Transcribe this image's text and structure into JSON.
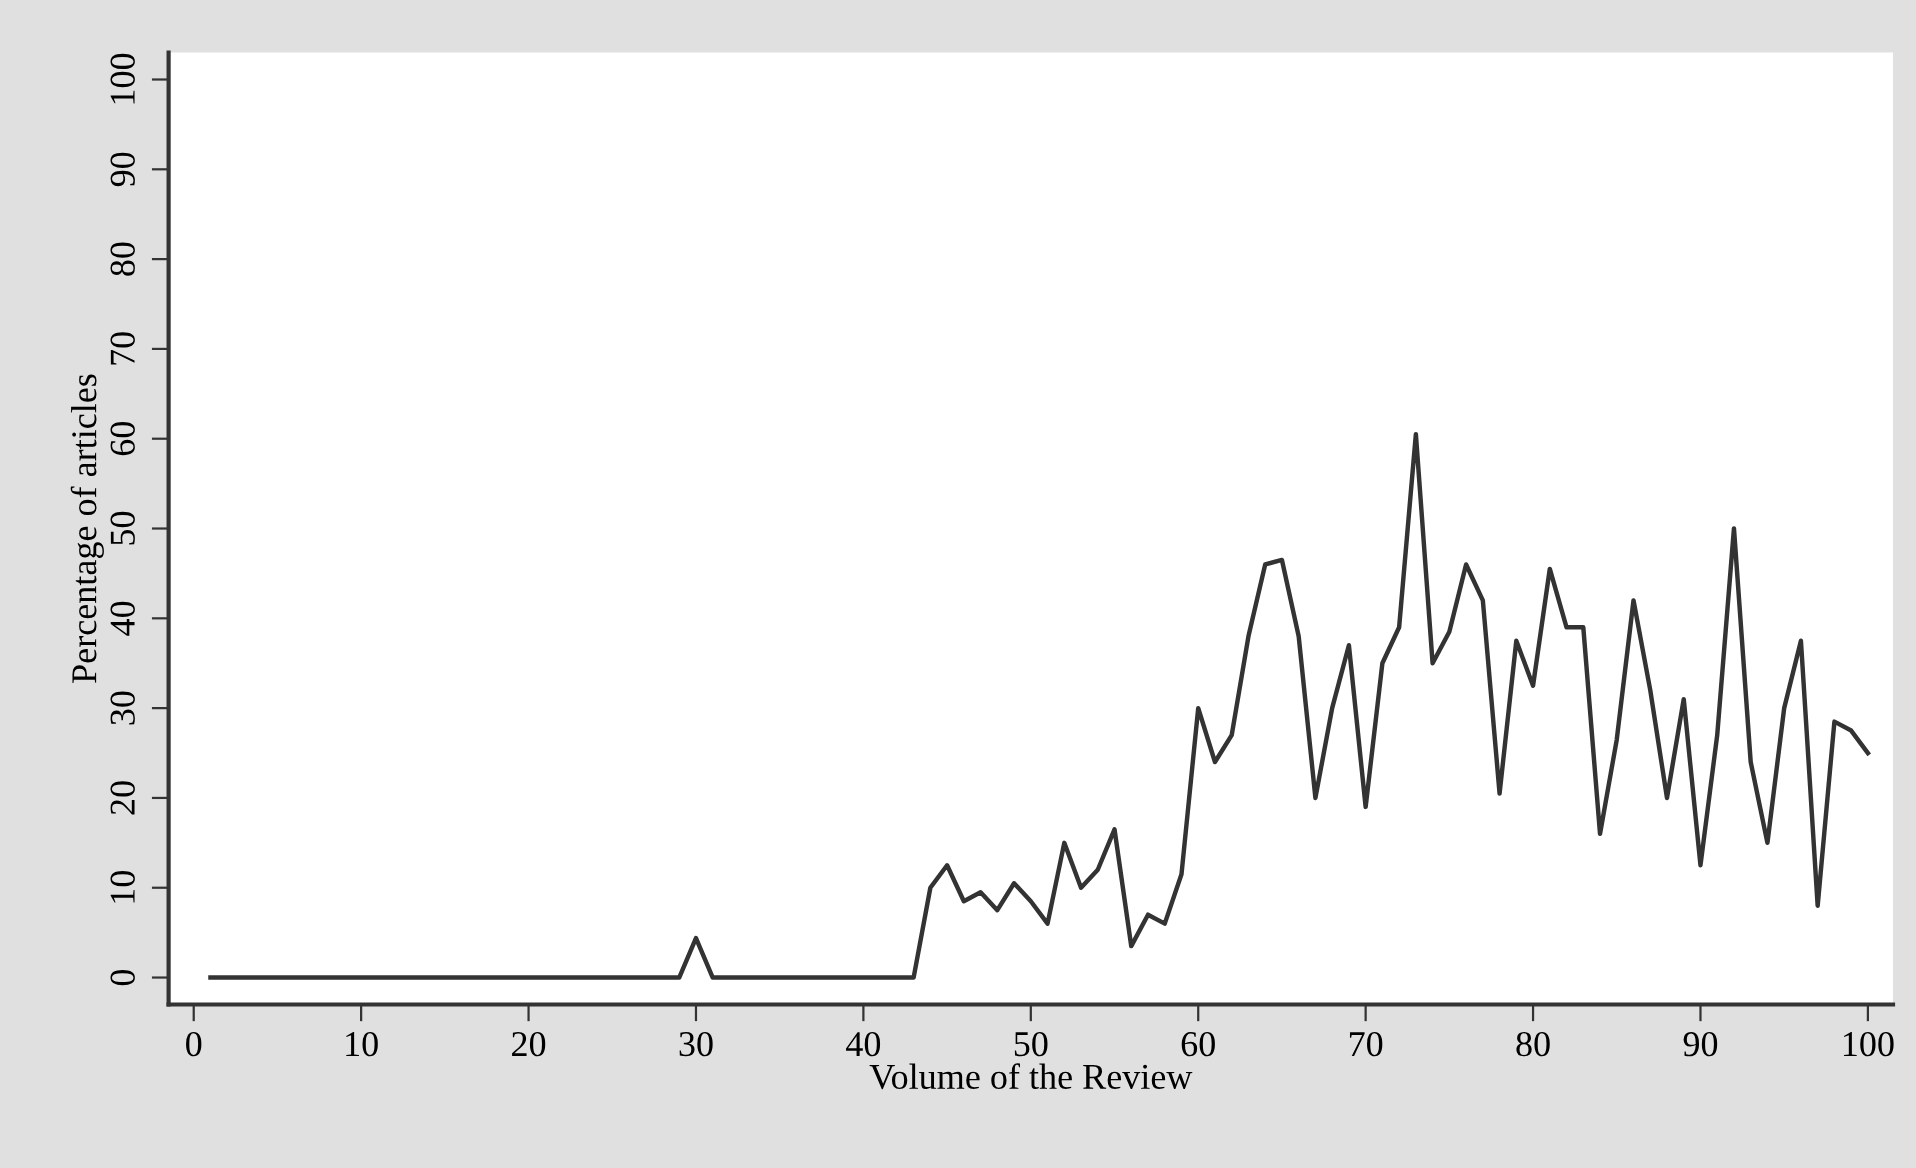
{
  "chart_data": {
    "type": "line",
    "xlabel": "Volume of the Review",
    "ylabel": "Percentage of articles",
    "x": [
      1,
      2,
      3,
      4,
      5,
      6,
      7,
      8,
      9,
      10,
      11,
      12,
      13,
      14,
      15,
      16,
      17,
      18,
      19,
      20,
      21,
      22,
      23,
      24,
      25,
      26,
      27,
      28,
      29,
      30,
      31,
      32,
      33,
      34,
      35,
      36,
      37,
      38,
      39,
      40,
      41,
      42,
      43,
      44,
      45,
      46,
      47,
      48,
      49,
      50,
      51,
      52,
      53,
      54,
      55,
      56,
      57,
      58,
      59,
      60,
      61,
      62,
      63,
      64,
      65,
      66,
      67,
      68,
      69,
      70,
      71,
      72,
      73,
      74,
      75,
      76,
      77,
      78,
      79,
      80,
      81,
      82,
      83,
      84,
      85,
      86,
      87,
      88,
      89,
      90,
      91,
      92,
      93,
      94,
      95,
      96,
      97,
      98,
      99,
      100
    ],
    "series": [
      {
        "color": "#333333",
        "values": [
          0,
          0,
          0,
          0,
          0,
          0,
          0,
          0,
          0,
          0,
          0,
          0,
          0,
          0,
          0,
          0,
          0,
          0,
          0,
          0,
          0,
          0,
          0,
          0,
          0,
          0,
          0,
          0,
          0,
          4.4,
          0,
          0,
          0,
          0,
          0,
          0,
          0,
          0,
          0,
          0,
          0,
          0,
          0,
          10,
          12.5,
          8.5,
          9.5,
          7.5,
          10.5,
          8.5,
          6,
          15,
          10,
          12,
          16.5,
          3.5,
          7,
          6,
          11.5,
          30,
          24,
          27,
          38,
          46,
          46.5,
          38,
          20,
          30,
          37,
          19,
          35,
          39,
          60.5,
          35,
          38.5,
          46,
          42,
          20.5,
          37.5,
          32.5,
          45.5,
          39,
          39,
          16,
          26.5,
          42,
          32,
          20,
          31,
          12.5,
          27,
          50,
          24,
          15,
          30,
          37.5,
          8,
          28.5,
          27.5,
          25
        ]
      }
    ],
    "xlim": [
      -1.5,
      101.5
    ],
    "ylim": [
      -3,
      103
    ],
    "xticks": [
      0,
      10,
      20,
      30,
      40,
      50,
      60,
      70,
      80,
      90,
      100
    ],
    "yticks": [
      0,
      10,
      20,
      30,
      40,
      50,
      60,
      70,
      80,
      90,
      100
    ],
    "grid": false,
    "legend": false,
    "marker": "none",
    "line_style": "solid"
  }
}
